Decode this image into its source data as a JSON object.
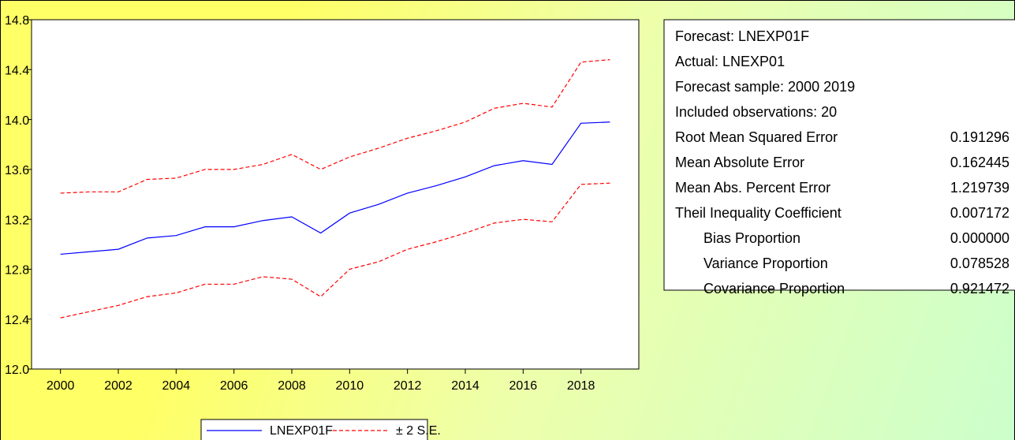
{
  "chart_data": {
    "type": "line",
    "x": [
      2000,
      2001,
      2002,
      2003,
      2004,
      2005,
      2006,
      2007,
      2008,
      2009,
      2010,
      2011,
      2012,
      2013,
      2014,
      2015,
      2016,
      2017,
      2018,
      2019
    ],
    "series": [
      {
        "name": "LNEXP01F",
        "color": "#0000ff",
        "values": [
          12.92,
          12.94,
          12.96,
          13.05,
          13.07,
          13.14,
          13.14,
          13.19,
          13.22,
          13.09,
          13.25,
          13.32,
          13.41,
          13.47,
          13.54,
          13.63,
          13.67,
          13.64,
          13.97,
          13.98
        ]
      },
      {
        "name": "± 2 S.E.",
        "color": "#ff0000",
        "dashed": true,
        "upper": [
          13.41,
          13.42,
          13.42,
          13.52,
          13.53,
          13.6,
          13.6,
          13.64,
          13.72,
          13.6,
          13.7,
          13.77,
          13.85,
          13.91,
          13.98,
          14.09,
          14.13,
          14.1,
          14.46,
          14.48
        ],
        "lower": [
          12.41,
          12.46,
          12.51,
          12.58,
          12.61,
          12.68,
          12.68,
          12.74,
          12.72,
          12.58,
          12.8,
          12.86,
          12.96,
          13.02,
          13.09,
          13.17,
          13.2,
          13.18,
          13.48,
          13.49
        ]
      }
    ],
    "xlim": [
      1999,
      2020
    ],
    "xticks": [
      2000,
      2002,
      2004,
      2006,
      2008,
      2010,
      2012,
      2014,
      2016,
      2018
    ],
    "ylim": [
      12.0,
      14.8
    ],
    "yticks": [
      {
        "value": 12.0,
        "label": "12.0"
      },
      12.4,
      12.8,
      13.2,
      13.6,
      {
        "value": 14.0,
        "label": "14.0"
      },
      14.4,
      14.8
    ],
    "legend": "bottom"
  },
  "stats": {
    "lines": [
      "Forecast: LNEXP01F",
      "Actual: LNEXP01",
      "Forecast sample: 2000 2019",
      "Included observations: 20"
    ],
    "rows": [
      [
        "Root Mean Squared Error",
        "0.191296"
      ],
      [
        "Mean Absolute Error",
        "0.162445"
      ],
      [
        "Mean Abs. Percent Error",
        "1.219739"
      ],
      [
        "Theil Inequality Coefficient",
        "0.007172"
      ]
    ],
    "sub_rows": [
      [
        "Bias Proportion",
        "0.000000"
      ],
      [
        "Variance Proportion",
        "0.078528"
      ],
      [
        "Covariance Proportion",
        "0.921472"
      ]
    ]
  }
}
